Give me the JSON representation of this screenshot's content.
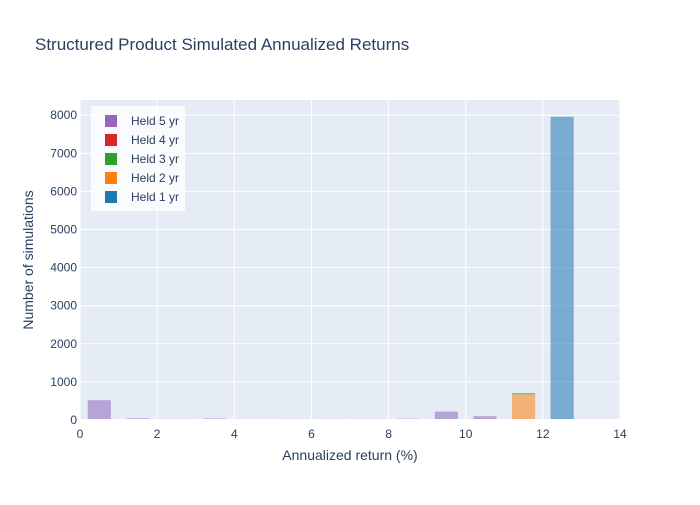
{
  "chart_data": {
    "type": "bar",
    "barmode": "stack",
    "title": "Structured Product Simulated Annualized Returns",
    "xlabel": "Annualized return (%)",
    "ylabel": "Number of simulations",
    "xlim": [
      0,
      14
    ],
    "ylim": [
      0,
      8400
    ],
    "x_ticks": [
      0,
      2,
      4,
      6,
      8,
      10,
      12,
      14
    ],
    "y_ticks": [
      0,
      1000,
      2000,
      3000,
      4000,
      5000,
      6000,
      7000,
      8000
    ],
    "bins": [
      [
        0,
        1
      ],
      [
        1,
        2
      ],
      [
        2,
        3
      ],
      [
        3,
        4
      ],
      [
        4,
        5
      ],
      [
        5,
        6
      ],
      [
        6,
        7
      ],
      [
        7,
        8
      ],
      [
        8,
        9
      ],
      [
        9,
        10
      ],
      [
        10,
        11
      ],
      [
        11,
        12
      ],
      [
        12,
        13
      ],
      [
        13,
        14
      ]
    ],
    "series": [
      {
        "name": "Held 1 yr",
        "color": "#1f77b4",
        "values": [
          0,
          0,
          0,
          0,
          0,
          0,
          0,
          0,
          0,
          0,
          0,
          0,
          7960,
          0
        ]
      },
      {
        "name": "Held 2 yr",
        "color": "#ff7f0e",
        "values": [
          0,
          0,
          0,
          0,
          0,
          0,
          0,
          0,
          0,
          0,
          0,
          670,
          0,
          0
        ]
      },
      {
        "name": "Held 3 yr",
        "color": "#2ca02c",
        "values": [
          0,
          0,
          0,
          0,
          0,
          0,
          0,
          0,
          0,
          0,
          0,
          40,
          0,
          0
        ]
      },
      {
        "name": "Held 4 yr",
        "color": "#d62728",
        "values": [
          0,
          0,
          0,
          0,
          0,
          0,
          0,
          0,
          0,
          0,
          20,
          0,
          0,
          0
        ]
      },
      {
        "name": "Held 5 yr",
        "color": "#9467bd",
        "values": [
          520,
          45,
          30,
          40,
          25,
          30,
          30,
          30,
          35,
          220,
          80,
          0,
          0,
          0
        ]
      }
    ],
    "legend": {
      "position": "top-left",
      "order": [
        "Held 5 yr",
        "Held 4 yr",
        "Held 3 yr",
        "Held 2 yr",
        "Held 1 yr"
      ]
    },
    "plot_background": "#e5ecf6",
    "grid_color": "#ffffff",
    "text_color": "#2a3f5f",
    "bar_opacity": 0.55,
    "grid": true
  }
}
